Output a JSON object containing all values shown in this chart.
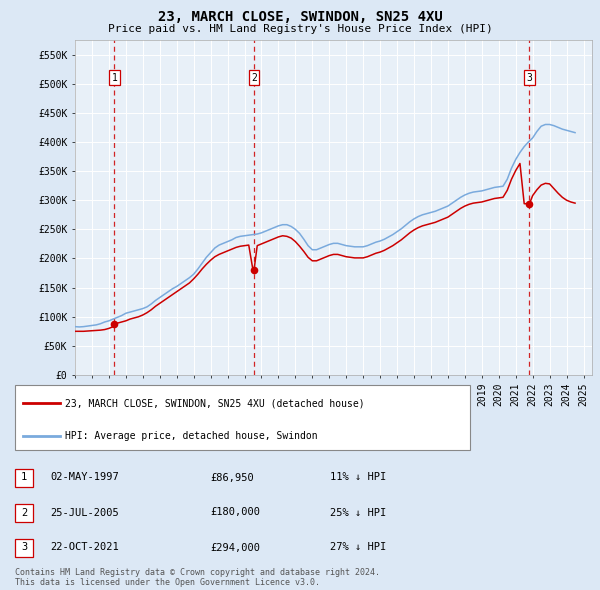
{
  "title": "23, MARCH CLOSE, SWINDON, SN25 4XU",
  "subtitle": "Price paid vs. HM Land Registry's House Price Index (HPI)",
  "ylabel_ticks": [
    "£0",
    "£50K",
    "£100K",
    "£150K",
    "£200K",
    "£250K",
    "£300K",
    "£350K",
    "£400K",
    "£450K",
    "£500K",
    "£550K"
  ],
  "ytick_values": [
    0,
    50000,
    100000,
    150000,
    200000,
    250000,
    300000,
    350000,
    400000,
    450000,
    500000,
    550000
  ],
  "ylim": [
    0,
    575000
  ],
  "xlim_start": 1995.0,
  "xlim_end": 2025.5,
  "purchases": [
    {
      "label": "1",
      "year": 1997.33,
      "price": 86950
    },
    {
      "label": "2",
      "year": 2005.56,
      "price": 180000
    },
    {
      "label": "3",
      "year": 2021.81,
      "price": 294000
    }
  ],
  "vline_color": "#cc0000",
  "hpi_color": "#7aaadd",
  "price_line_color": "#cc0000",
  "bg_color": "#dce8f5",
  "plot_bg": "#e8f0f8",
  "grid_color": "#ffffff",
  "legend_entries": [
    "23, MARCH CLOSE, SWINDON, SN25 4XU (detached house)",
    "HPI: Average price, detached house, Swindon"
  ],
  "table_rows": [
    {
      "num": "1",
      "date": "02-MAY-1997",
      "price": "£86,950",
      "pct": "11% ↓ HPI"
    },
    {
      "num": "2",
      "date": "25-JUL-2005",
      "price": "£180,000",
      "pct": "25% ↓ HPI"
    },
    {
      "num": "3",
      "date": "22-OCT-2021",
      "price": "£294,000",
      "pct": "27% ↓ HPI"
    }
  ],
  "footer": "Contains HM Land Registry data © Crown copyright and database right 2024.\nThis data is licensed under the Open Government Licence v3.0.",
  "hpi_data_years": [
    1995.0,
    1995.25,
    1995.5,
    1995.75,
    1996.0,
    1996.25,
    1996.5,
    1996.75,
    1997.0,
    1997.25,
    1997.5,
    1997.75,
    1998.0,
    1998.25,
    1998.5,
    1998.75,
    1999.0,
    1999.25,
    1999.5,
    1999.75,
    2000.0,
    2000.25,
    2000.5,
    2000.75,
    2001.0,
    2001.25,
    2001.5,
    2001.75,
    2002.0,
    2002.25,
    2002.5,
    2002.75,
    2003.0,
    2003.25,
    2003.5,
    2003.75,
    2004.0,
    2004.25,
    2004.5,
    2004.75,
    2005.0,
    2005.25,
    2005.5,
    2005.75,
    2006.0,
    2006.25,
    2006.5,
    2006.75,
    2007.0,
    2007.25,
    2007.5,
    2007.75,
    2008.0,
    2008.25,
    2008.5,
    2008.75,
    2009.0,
    2009.25,
    2009.5,
    2009.75,
    2010.0,
    2010.25,
    2010.5,
    2010.75,
    2011.0,
    2011.25,
    2011.5,
    2011.75,
    2012.0,
    2012.25,
    2012.5,
    2012.75,
    2013.0,
    2013.25,
    2013.5,
    2013.75,
    2014.0,
    2014.25,
    2014.5,
    2014.75,
    2015.0,
    2015.25,
    2015.5,
    2015.75,
    2016.0,
    2016.25,
    2016.5,
    2016.75,
    2017.0,
    2017.25,
    2017.5,
    2017.75,
    2018.0,
    2018.25,
    2018.5,
    2018.75,
    2019.0,
    2019.25,
    2019.5,
    2019.75,
    2020.0,
    2020.25,
    2020.5,
    2020.75,
    2021.0,
    2021.25,
    2021.5,
    2021.75,
    2022.0,
    2022.25,
    2022.5,
    2022.75,
    2023.0,
    2023.25,
    2023.5,
    2023.75,
    2024.0,
    2024.25,
    2024.5
  ],
  "hpi_values": [
    83000,
    82500,
    83000,
    84000,
    85000,
    86000,
    88000,
    91000,
    93000,
    96000,
    99000,
    102000,
    106000,
    108000,
    110000,
    112000,
    114000,
    117000,
    122000,
    128000,
    133000,
    138000,
    143000,
    148000,
    152000,
    157000,
    162000,
    167000,
    173000,
    182000,
    192000,
    202000,
    210000,
    218000,
    223000,
    226000,
    229000,
    232000,
    236000,
    238000,
    239000,
    240000,
    241000,
    242000,
    244000,
    247000,
    250000,
    253000,
    256000,
    258000,
    258000,
    255000,
    250000,
    243000,
    233000,
    222000,
    215000,
    215000,
    218000,
    221000,
    224000,
    226000,
    226000,
    224000,
    222000,
    221000,
    220000,
    220000,
    220000,
    222000,
    225000,
    228000,
    230000,
    233000,
    237000,
    241000,
    246000,
    251000,
    257000,
    263000,
    268000,
    272000,
    275000,
    277000,
    279000,
    281000,
    284000,
    287000,
    290000,
    295000,
    300000,
    305000,
    309000,
    312000,
    314000,
    315000,
    316000,
    318000,
    320000,
    322000,
    323000,
    324000,
    336000,
    355000,
    370000,
    382000,
    392000,
    400000,
    407000,
    418000,
    427000,
    430000,
    430000,
    428000,
    425000,
    422000,
    420000,
    418000,
    416000
  ],
  "price_line_years": [
    1995.0,
    1995.25,
    1995.5,
    1995.75,
    1996.0,
    1996.25,
    1996.5,
    1996.75,
    1997.0,
    1997.25,
    1997.33,
    1997.5,
    1997.75,
    1998.0,
    1998.25,
    1998.5,
    1998.75,
    1999.0,
    1999.25,
    1999.5,
    1999.75,
    2000.0,
    2000.25,
    2000.5,
    2000.75,
    2001.0,
    2001.25,
    2001.5,
    2001.75,
    2002.0,
    2002.25,
    2002.5,
    2002.75,
    2003.0,
    2003.25,
    2003.5,
    2003.75,
    2004.0,
    2004.25,
    2004.5,
    2004.75,
    2005.0,
    2005.25,
    2005.5,
    2005.56,
    2005.75,
    2006.0,
    2006.25,
    2006.5,
    2006.75,
    2007.0,
    2007.25,
    2007.5,
    2007.75,
    2008.0,
    2008.25,
    2008.5,
    2008.75,
    2009.0,
    2009.25,
    2009.5,
    2009.75,
    2010.0,
    2010.25,
    2010.5,
    2010.75,
    2011.0,
    2011.25,
    2011.5,
    2011.75,
    2012.0,
    2012.25,
    2012.5,
    2012.75,
    2013.0,
    2013.25,
    2013.5,
    2013.75,
    2014.0,
    2014.25,
    2014.5,
    2014.75,
    2015.0,
    2015.25,
    2015.5,
    2015.75,
    2016.0,
    2016.25,
    2016.5,
    2016.75,
    2017.0,
    2017.25,
    2017.5,
    2017.75,
    2018.0,
    2018.25,
    2018.5,
    2018.75,
    2019.0,
    2019.25,
    2019.5,
    2019.75,
    2020.0,
    2020.25,
    2020.5,
    2020.75,
    2021.0,
    2021.25,
    2021.5,
    2021.75,
    2021.81,
    2022.0,
    2022.25,
    2022.5,
    2022.75,
    2023.0,
    2023.25,
    2023.5,
    2023.75,
    2024.0,
    2024.25,
    2024.5
  ],
  "price_line_values": [
    75000,
    75000,
    75000,
    75500,
    76000,
    76500,
    77000,
    78000,
    80000,
    83000,
    86950,
    89000,
    91000,
    93000,
    96000,
    98000,
    100000,
    103000,
    107000,
    112000,
    118000,
    123000,
    128000,
    133000,
    138000,
    143000,
    148000,
    153000,
    158000,
    165000,
    173000,
    182000,
    190000,
    197000,
    203000,
    207000,
    210000,
    213000,
    216000,
    219000,
    221000,
    222000,
    223000,
    180000,
    180000,
    222000,
    225000,
    228000,
    231000,
    234000,
    237000,
    239000,
    238000,
    235000,
    229000,
    221000,
    212000,
    202000,
    196000,
    196000,
    199000,
    202000,
    205000,
    207000,
    207000,
    205000,
    203000,
    202000,
    201000,
    201000,
    201000,
    203000,
    206000,
    209000,
    211000,
    214000,
    218000,
    222000,
    227000,
    232000,
    238000,
    244000,
    249000,
    253000,
    256000,
    258000,
    260000,
    262000,
    265000,
    268000,
    271000,
    276000,
    281000,
    286000,
    290000,
    293000,
    295000,
    296000,
    297000,
    299000,
    301000,
    303000,
    304000,
    305000,
    317000,
    336000,
    351000,
    363000,
    294000,
    294000,
    294000,
    308000,
    318000,
    326000,
    329000,
    328000,
    320000,
    312000,
    305000,
    300000,
    297000,
    295000
  ]
}
